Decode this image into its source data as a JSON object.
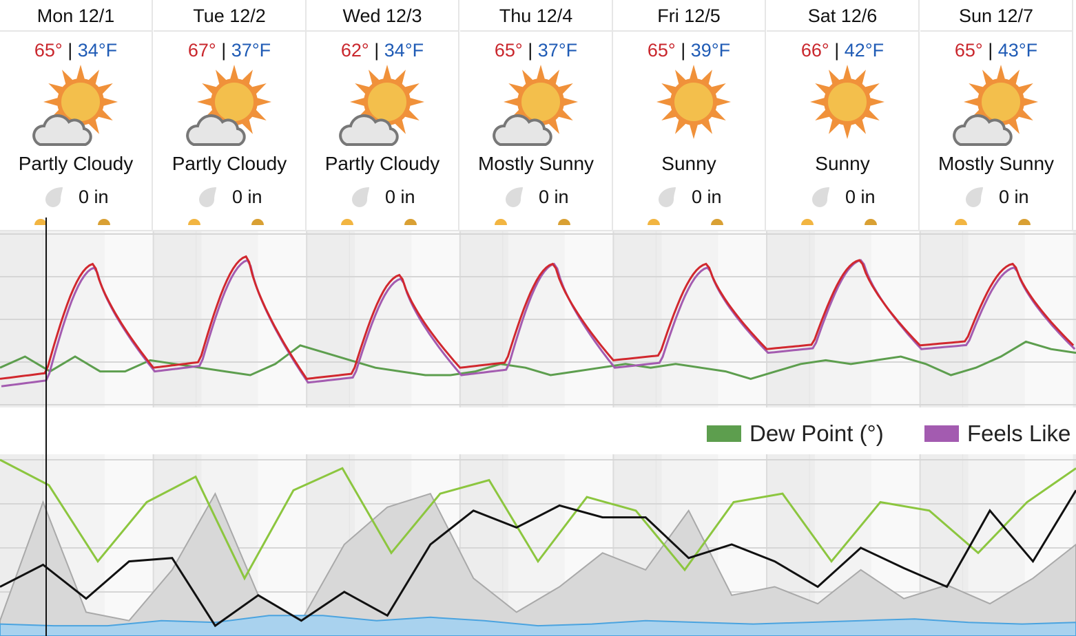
{
  "days": [
    {
      "label": "Mon 12/1",
      "hi": "65°",
      "lo": "34°F",
      "condition": "Partly Cloudy",
      "icon": "partly-cloudy-icon",
      "precip": "0 in"
    },
    {
      "label": "Tue 12/2",
      "hi": "67°",
      "lo": "37°F",
      "condition": "Partly Cloudy",
      "icon": "partly-cloudy-icon",
      "precip": "0 in"
    },
    {
      "label": "Wed 12/3",
      "hi": "62°",
      "lo": "34°F",
      "condition": "Partly Cloudy",
      "icon": "partly-cloudy-icon",
      "precip": "0 in"
    },
    {
      "label": "Thu 12/4",
      "hi": "65°",
      "lo": "37°F",
      "condition": "Mostly Sunny",
      "icon": "mostly-sunny-icon",
      "precip": "0 in"
    },
    {
      "label": "Fri 12/5",
      "hi": "65°",
      "lo": "39°F",
      "condition": "Sunny",
      "icon": "sunny-icon",
      "precip": "0 in"
    },
    {
      "label": "Sat 12/6",
      "hi": "66°",
      "lo": "42°F",
      "condition": "Sunny",
      "icon": "sunny-icon",
      "precip": "0 in"
    },
    {
      "label": "Sun 12/7",
      "hi": "65°",
      "lo": "43°F",
      "condition": "Mostly Sunny",
      "icon": "mostly-sunny-icon",
      "precip": "0 in"
    }
  ],
  "separator": "|",
  "legend": {
    "dew_point": "Dew Point (°)",
    "feels_like": "Feels Like"
  },
  "colors": {
    "high": "#c9262c",
    "low": "#1f5bb5",
    "temperature": "#d1282e",
    "feels_like": "#a35bb0",
    "dew_point": "#5d9e4e",
    "humidity": "#8cc63f",
    "cloud_cover": "#d8d8d8",
    "wind": "#111111",
    "precip_chance": "#4aa3df"
  },
  "chart_data": [
    {
      "type": "line",
      "name": "temperature-chart",
      "days": [
        "Mon 12/1",
        "Tue 12/2",
        "Wed 12/3",
        "Thu 12/4",
        "Fri 12/5",
        "Sat 12/6",
        "Sun 12/7"
      ],
      "series": [
        {
          "key": "temperature",
          "daily_high": [
            65,
            67,
            62,
            65,
            65,
            66,
            65
          ],
          "daily_low": [
            34,
            37,
            34,
            37,
            39,
            42,
            43
          ]
        },
        {
          "key": "feels_like",
          "name": "Feels Like",
          "daily_high": [
            64,
            66,
            61,
            65,
            64,
            66,
            64
          ],
          "daily_low": [
            32,
            36,
            33,
            35,
            37,
            41,
            42
          ]
        },
        {
          "key": "dew_point",
          "name": "Dew Point (°)",
          "values": [
            37,
            40,
            36,
            40,
            36,
            36,
            39,
            38,
            37,
            36,
            35,
            38,
            43,
            41,
            39,
            37,
            36,
            35,
            35,
            36,
            38,
            37,
            35,
            36,
            37,
            38,
            37,
            38,
            37,
            36,
            34,
            36,
            38,
            39,
            38,
            39,
            40,
            38,
            35,
            37,
            40,
            44,
            42,
            41
          ]
        }
      ]
    },
    {
      "type": "line",
      "name": "conditions-chart",
      "series": [
        {
          "key": "humidity",
          "values": [
            100,
            85,
            40,
            75,
            90,
            30,
            82,
            95,
            45,
            80,
            88,
            40,
            78,
            70,
            35,
            75,
            80,
            40,
            75,
            70,
            45,
            75,
            95
          ]
        },
        {
          "key": "wind",
          "values": [
            25,
            38,
            18,
            40,
            42,
            2,
            20,
            5,
            22,
            8,
            50,
            70,
            60,
            73,
            66,
            66,
            42,
            50,
            40,
            25,
            48,
            36,
            25,
            70,
            40,
            82
          ]
        },
        {
          "key": "cloud_cover",
          "values": [
            5,
            75,
            10,
            5,
            35,
            80,
            20,
            5,
            50,
            72,
            80,
            30,
            10,
            25,
            45,
            35,
            70,
            20,
            25,
            15,
            35,
            18,
            26,
            15,
            30,
            50
          ]
        },
        {
          "key": "precip_chance",
          "values": [
            3,
            2,
            2,
            5,
            4,
            8,
            8,
            5,
            7,
            5,
            2,
            3,
            5,
            4,
            3,
            4,
            5,
            6,
            4,
            3,
            4
          ]
        }
      ]
    }
  ]
}
